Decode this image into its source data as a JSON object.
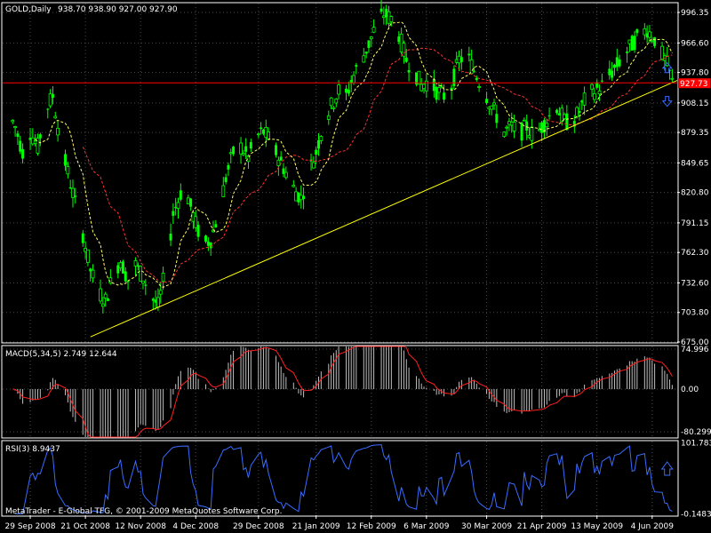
{
  "header": {
    "symbol": "GOLD,Daily",
    "ohlc": "938.70 938.90 927.00 927.90"
  },
  "copyright": "MetaTrader - E-Global TFG, © 2001-2009 MetaQuotes Software Corp.",
  "colors": {
    "background": "#000000",
    "frame": "#ffffff",
    "grid": "#4a4a4a",
    "bull": "#00ff00",
    "bear": "#00ff00",
    "ma_fast": "#ffff66",
    "ma_slow": "#ff3030",
    "trendline": "#ffff00",
    "hline": "#ff0000",
    "price_label_bg": "#ff0000",
    "macd_hist": "#c0c0c0",
    "macd_signal": "#ff2020",
    "rsi": "#3a6cff",
    "arrow": "#3a6cff"
  },
  "icons": {
    "buy_arrow": "up-arrow-icon",
    "sell_arrow": "down-arrow-icon"
  },
  "chart_data": [
    {
      "type": "candlestick",
      "title": "GOLD,Daily",
      "x_tick_labels": [
        "29 Sep 2008",
        "21 Oct 2008",
        "12 Nov 2008",
        "4 Dec 2008",
        "29 Dec 2008",
        "21 Jan 2009",
        "12 Feb 2009",
        "6 Mar 2009",
        "30 Mar 2009",
        "21 Apr 2009",
        "13 May 2009",
        "4 Jun 2009"
      ],
      "y_tick_labels": [
        "996.35",
        "966.60",
        "937.80",
        "908.15",
        "879.35",
        "849.65",
        "820.80",
        "791.15",
        "762.30",
        "732.60",
        "703.80",
        "675.00"
      ],
      "ylim": [
        675.0,
        1005.0
      ],
      "current_price": "927.73",
      "horizontal_line": 927.73,
      "trendline": {
        "start": [
          "2008-10-23",
          680.0
        ],
        "end": [
          "2009-06-12",
          930.0
        ]
      },
      "arrows": [
        {
          "type": "buy",
          "date": "2009-06-10",
          "price": 942.0
        },
        {
          "type": "sell",
          "date": "2009-06-10",
          "price": 910.0
        }
      ],
      "series_closes": [
        [
          "2008-09-20",
          900
        ],
        [
          "2008-09-23",
          885
        ],
        [
          "2008-09-26",
          860
        ],
        [
          "2008-09-29",
          880
        ],
        [
          "2008-10-02",
          865
        ],
        [
          "2008-10-05",
          900
        ],
        [
          "2008-10-08",
          915
        ],
        [
          "2008-10-11",
          870
        ],
        [
          "2008-10-14",
          840
        ],
        [
          "2008-10-17",
          810
        ],
        [
          "2008-10-20",
          780
        ],
        [
          "2008-10-23",
          745
        ],
        [
          "2008-10-26",
          725
        ],
        [
          "2008-10-29",
          715
        ],
        [
          "2008-11-01",
          740
        ],
        [
          "2008-11-04",
          755
        ],
        [
          "2008-11-07",
          735
        ],
        [
          "2008-11-10",
          750
        ],
        [
          "2008-11-13",
          738
        ],
        [
          "2008-11-16",
          720
        ],
        [
          "2008-11-19",
          710
        ],
        [
          "2008-11-22",
          745
        ],
        [
          "2008-11-25",
          800
        ],
        [
          "2008-11-28",
          820
        ],
        [
          "2008-12-01",
          815
        ],
        [
          "2008-12-04",
          790
        ],
        [
          "2008-12-07",
          770
        ],
        [
          "2008-12-10",
          775
        ],
        [
          "2008-12-13",
          800
        ],
        [
          "2008-12-16",
          835
        ],
        [
          "2008-12-19",
          860
        ],
        [
          "2008-12-22",
          865
        ],
        [
          "2008-12-25",
          855
        ],
        [
          "2008-12-28",
          875
        ],
        [
          "2008-12-31",
          880
        ],
        [
          "2009-01-03",
          870
        ],
        [
          "2009-01-06",
          855
        ],
        [
          "2009-01-09",
          840
        ],
        [
          "2009-01-12",
          825
        ],
        [
          "2009-01-15",
          815
        ],
        [
          "2009-01-18",
          840
        ],
        [
          "2009-01-21",
          860
        ],
        [
          "2009-01-24",
          890
        ],
        [
          "2009-01-27",
          905
        ],
        [
          "2009-01-30",
          920
        ],
        [
          "2009-02-02",
          915
        ],
        [
          "2009-02-05",
          935
        ],
        [
          "2009-02-08",
          950
        ],
        [
          "2009-02-11",
          965
        ],
        [
          "2009-02-14",
          985
        ],
        [
          "2009-02-17",
          995
        ],
        [
          "2009-02-20",
          990
        ],
        [
          "2009-02-23",
          975
        ],
        [
          "2009-02-26",
          950
        ],
        [
          "2009-03-01",
          940
        ],
        [
          "2009-03-04",
          925
        ],
        [
          "2009-03-07",
          930
        ],
        [
          "2009-03-10",
          920
        ],
        [
          "2009-03-13",
          915
        ],
        [
          "2009-03-16",
          925
        ],
        [
          "2009-03-19",
          950
        ],
        [
          "2009-03-22",
          955
        ],
        [
          "2009-03-25",
          940
        ],
        [
          "2009-03-28",
          925
        ],
        [
          "2009-03-31",
          910
        ],
        [
          "2009-04-03",
          895
        ],
        [
          "2009-04-06",
          880
        ],
        [
          "2009-04-09",
          885
        ],
        [
          "2009-04-12",
          878
        ],
        [
          "2009-04-15",
          885
        ],
        [
          "2009-04-18",
          875
        ],
        [
          "2009-04-21",
          885
        ],
        [
          "2009-04-24",
          895
        ],
        [
          "2009-04-27",
          905
        ],
        [
          "2009-04-30",
          890
        ],
        [
          "2009-05-03",
          888
        ],
        [
          "2009-05-06",
          900
        ],
        [
          "2009-05-09",
          915
        ],
        [
          "2009-05-12",
          920
        ],
        [
          "2009-05-15",
          925
        ],
        [
          "2009-05-18",
          935
        ],
        [
          "2009-05-21",
          945
        ],
        [
          "2009-05-24",
          955
        ],
        [
          "2009-05-27",
          965
        ],
        [
          "2009-05-30",
          975
        ],
        [
          "2009-06-02",
          980
        ],
        [
          "2009-06-05",
          970
        ],
        [
          "2009-06-08",
          955
        ],
        [
          "2009-06-10",
          945
        ],
        [
          "2009-06-12",
          928
        ]
      ]
    },
    {
      "type": "histogram",
      "title": "MACD(5,34,5) 2.749 12.644",
      "y_tick_labels": [
        "74.996",
        "0.00",
        "-80.299"
      ],
      "ylim": [
        -90.0,
        80.0
      ]
    },
    {
      "type": "line",
      "title": "RSI(3) 8.9437",
      "y_tick_labels": [
        "101.7838",
        "-0.1483"
      ],
      "ylim": [
        -2.0,
        104.0
      ]
    }
  ]
}
